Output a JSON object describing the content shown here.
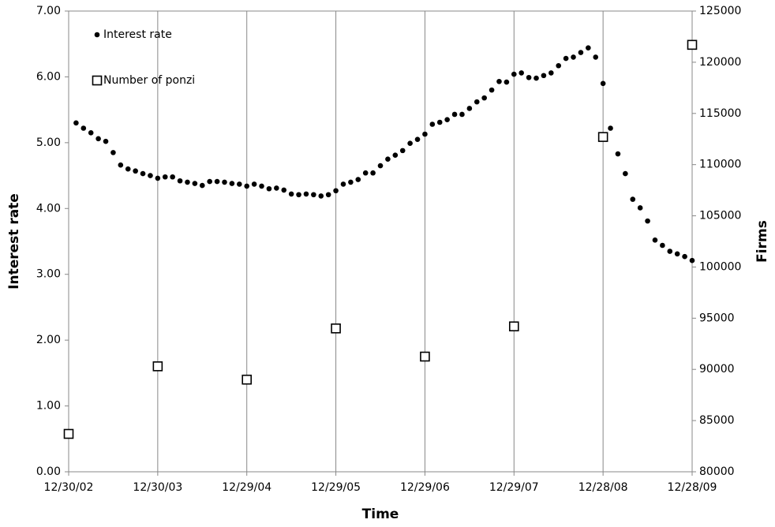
{
  "chart_data": {
    "type": "scatter",
    "xlabel": "Time",
    "ylabel": "Interest rate",
    "y2label": "Firms",
    "xlim": [
      0,
      84
    ],
    "xticks": [
      {
        "value": 0,
        "label": "12/30/02"
      },
      {
        "value": 12,
        "label": "12/30/03"
      },
      {
        "value": 24,
        "label": "12/29/04"
      },
      {
        "value": 36,
        "label": "12/29/05"
      },
      {
        "value": 48,
        "label": "12/29/06"
      },
      {
        "value": 60,
        "label": "12/29/07"
      },
      {
        "value": 72,
        "label": "12/28/08"
      },
      {
        "value": 84,
        "label": "12/28/09"
      }
    ],
    "ylim": [
      0,
      7
    ],
    "yticks": [
      {
        "value": 0,
        "label": "0.00"
      },
      {
        "value": 1,
        "label": "1.00"
      },
      {
        "value": 2,
        "label": "2.00"
      },
      {
        "value": 3,
        "label": "3.00"
      },
      {
        "value": 4,
        "label": "4.00"
      },
      {
        "value": 5,
        "label": "5.00"
      },
      {
        "value": 6,
        "label": "6.00"
      },
      {
        "value": 7,
        "label": "7.00"
      }
    ],
    "y2lim": [
      80000,
      125000
    ],
    "y2ticks": [
      80000,
      85000,
      90000,
      95000,
      100000,
      105000,
      110000,
      115000,
      120000,
      125000
    ],
    "grid": "x",
    "legend": "upper left",
    "series": [
      {
        "name": "Interest rate",
        "color": "#000000",
        "marker": "circle",
        "x": [
          1,
          2,
          3,
          4,
          5,
          6,
          7,
          8,
          9,
          10,
          11,
          12,
          13,
          14,
          15,
          16,
          17,
          18,
          19,
          20,
          21,
          22,
          23,
          24,
          25,
          26,
          27,
          28,
          29,
          30,
          31,
          32,
          33,
          34,
          35,
          36,
          37,
          38,
          39,
          40,
          41,
          42,
          43,
          44,
          45,
          46,
          47,
          48,
          49,
          50,
          51,
          52,
          53,
          54,
          55,
          56,
          57,
          58,
          59,
          60,
          61,
          62,
          63,
          64,
          65,
          66,
          67,
          68,
          69,
          70,
          71,
          72,
          73,
          74,
          75,
          76,
          77,
          78,
          79,
          80,
          81,
          82,
          83,
          84
        ],
        "values": [
          5.3,
          5.22,
          5.15,
          5.06,
          5.02,
          4.85,
          4.66,
          4.6,
          4.57,
          4.53,
          4.5,
          4.46,
          4.48,
          4.48,
          4.42,
          4.4,
          4.38,
          4.35,
          4.41,
          4.41,
          4.4,
          4.38,
          4.37,
          4.34,
          4.37,
          4.34,
          4.3,
          4.31,
          4.28,
          4.22,
          4.21,
          4.22,
          4.21,
          4.19,
          4.21,
          4.27,
          4.37,
          4.4,
          4.44,
          4.54,
          4.54,
          4.65,
          4.75,
          4.81,
          4.88,
          4.99,
          5.05,
          5.13,
          5.28,
          5.31,
          5.35,
          5.43,
          5.43,
          5.52,
          5.62,
          5.68,
          5.8,
          5.93,
          5.92,
          6.04,
          6.06,
          5.99,
          5.98,
          6.02,
          6.06,
          6.17,
          6.28,
          6.3,
          6.37,
          6.44,
          6.3,
          5.9,
          5.22,
          4.83,
          4.53,
          4.14,
          4.01,
          3.81,
          3.52,
          3.44,
          3.35,
          3.31,
          3.27,
          3.21
        ]
      },
      {
        "name": "Number of ponzi",
        "color": "#000000",
        "marker": "square",
        "axis": "y2",
        "x": [
          0,
          12,
          24,
          36,
          48,
          60,
          72,
          84
        ],
        "values": [
          83700,
          90300,
          89000,
          94000,
          91250,
          94200,
          112700,
          121700
        ]
      }
    ]
  }
}
